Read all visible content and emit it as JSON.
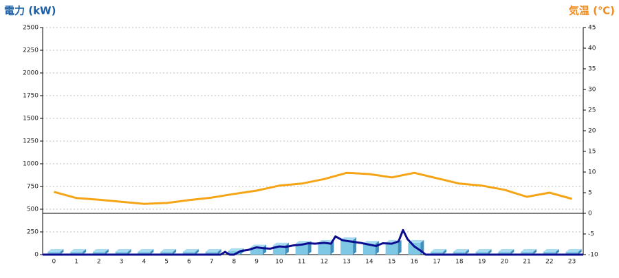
{
  "chart_data": {
    "type": "bar",
    "y_label": "電力 (kW)",
    "y2_label": "気温 (℃)",
    "categories": [
      "0",
      "1",
      "2",
      "3",
      "4",
      "5",
      "6",
      "7",
      "8",
      "9",
      "10",
      "11",
      "12",
      "13",
      "14",
      "15",
      "16",
      "17",
      "18",
      "19",
      "20",
      "21",
      "22",
      "23"
    ],
    "xlim": [
      -0.5,
      23.5
    ],
    "ylim": [
      0,
      2500
    ],
    "yticks": [
      0,
      250,
      500,
      750,
      1000,
      1250,
      1500,
      1750,
      2000,
      2250,
      2500
    ],
    "y2lim": [
      -10,
      45
    ],
    "y2ticks": [
      -10,
      -5,
      0,
      5,
      10,
      15,
      20,
      25,
      30,
      35,
      40,
      45
    ],
    "grid": true,
    "series": [
      {
        "type": "bar",
        "color": "#7ec8e6",
        "values": [
          30,
          30,
          30,
          30,
          30,
          30,
          30,
          30,
          40,
          80,
          100,
          120,
          130,
          160,
          120,
          130,
          130,
          30,
          30,
          30,
          30,
          30,
          30,
          30
        ]
      },
      {
        "type": "line",
        "color": "#0c0c8e",
        "x": [
          -0.5,
          0,
          1,
          2,
          3,
          4,
          5,
          6,
          7,
          7.4,
          7.6,
          7.8,
          8,
          8.3,
          8.6,
          9,
          9.3,
          9.6,
          10,
          10.3,
          10.6,
          11,
          11.3,
          11.6,
          12,
          12.3,
          12.5,
          12.8,
          13,
          13.3,
          13.6,
          14,
          14.3,
          14.6,
          15,
          15.3,
          15.5,
          15.7,
          16,
          16.3,
          16.5,
          17,
          18,
          19,
          20,
          21,
          22,
          23,
          23.5
        ],
        "values": [
          0,
          0,
          0,
          0,
          0,
          0,
          0,
          0,
          0,
          0,
          30,
          0,
          0,
          40,
          50,
          80,
          70,
          65,
          90,
          85,
          100,
          110,
          125,
          120,
          130,
          120,
          200,
          160,
          150,
          140,
          130,
          110,
          95,
          125,
          120,
          145,
          270,
          170,
          90,
          40,
          0,
          0,
          0,
          0,
          0,
          0,
          0,
          0,
          0
        ]
      },
      {
        "type": "line",
        "axis": "y2",
        "color": "#f5a416",
        "values": [
          5.2,
          3.7,
          3.3,
          2.8,
          2.3,
          2.5,
          3.2,
          3.8,
          4.7,
          5.5,
          6.7,
          7.2,
          8.3,
          9.8,
          9.5,
          8.7,
          9.8,
          8.5,
          7.2,
          6.7,
          5.7,
          4.0,
          5.0,
          3.5
        ]
      }
    ]
  }
}
